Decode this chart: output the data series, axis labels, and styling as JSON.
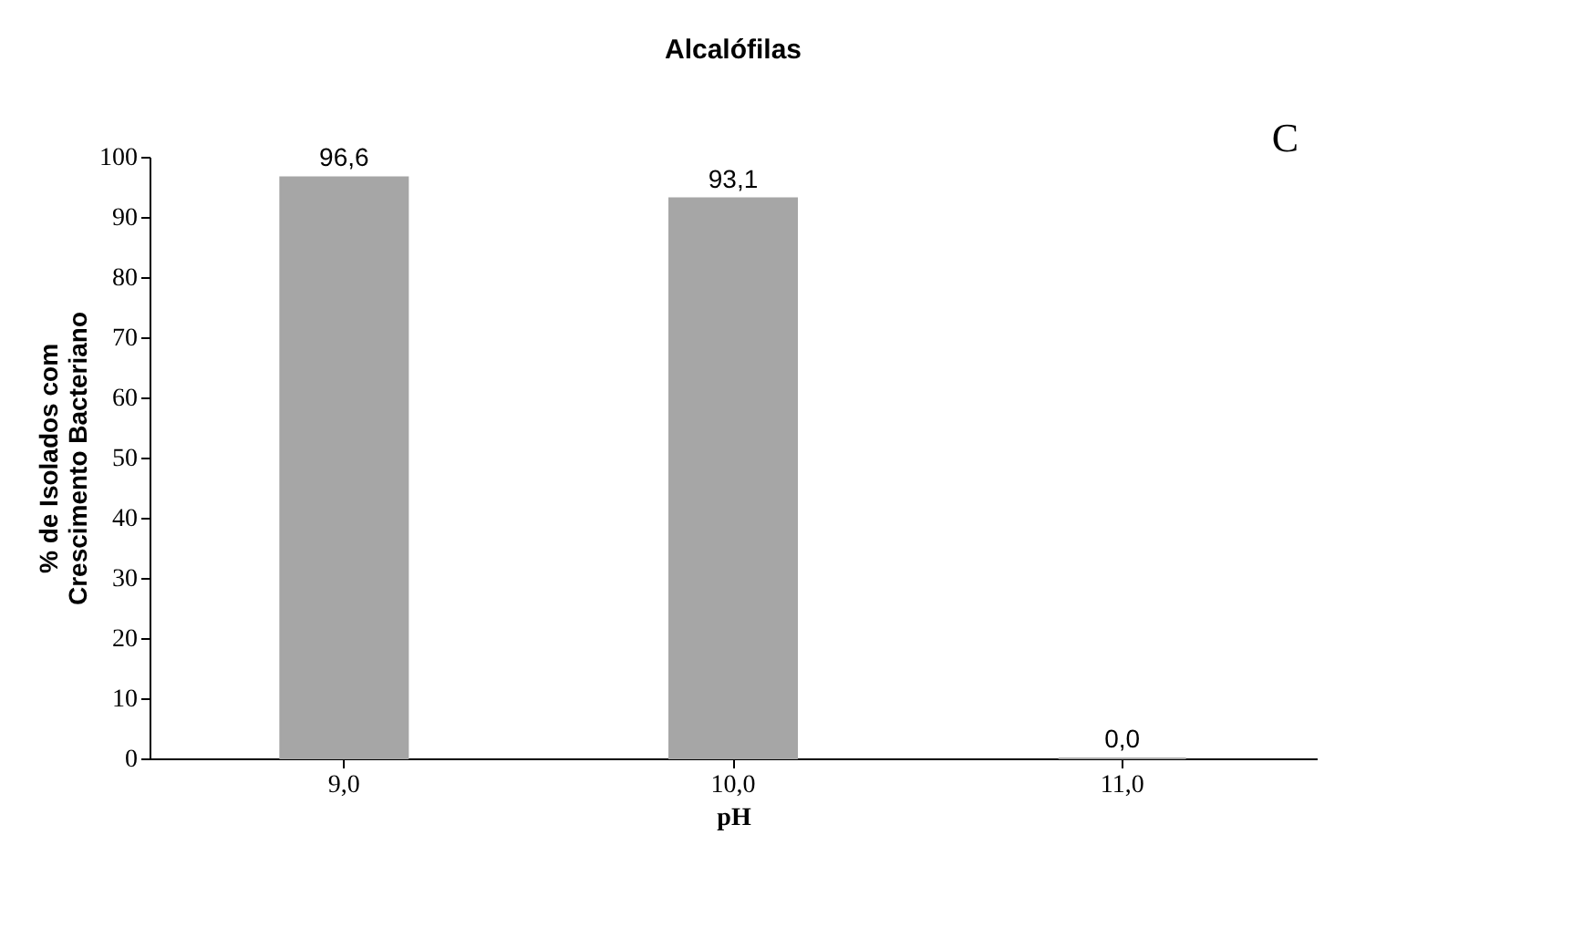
{
  "chart_data": {
    "type": "bar",
    "title": "Alcalófilas",
    "xlabel": "pH",
    "ylabel": "% de Isolados com\nCrescimento Bacteriano",
    "categories": [
      "9,0",
      "10,0",
      "11,0"
    ],
    "values": [
      96.6,
      93.1,
      0.0
    ],
    "value_labels": [
      "96,6",
      "93,1",
      "0,0"
    ],
    "color": "#a6a6a6",
    "ylim": [
      0,
      100
    ],
    "yticks": [
      0,
      10,
      20,
      30,
      40,
      50,
      60,
      70,
      80,
      90,
      100
    ],
    "grid": false,
    "annotations": [
      "C"
    ]
  }
}
